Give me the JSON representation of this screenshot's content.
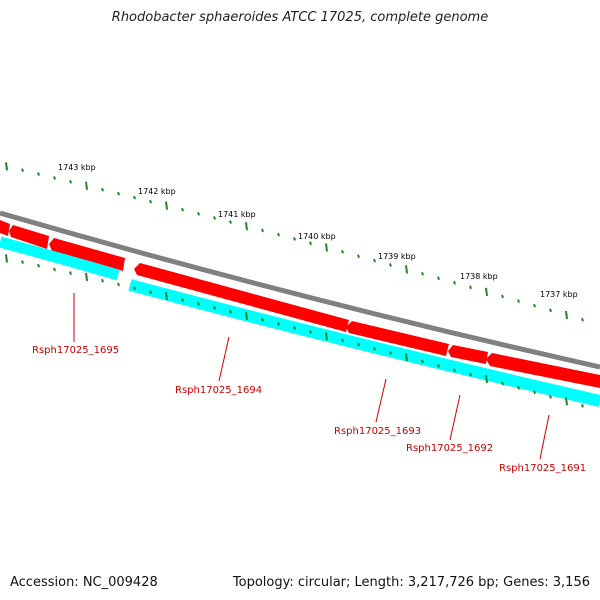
{
  "title": "Rhodobacter sphaeroides ATCC 17025, complete genome",
  "footer": {
    "accession": "Accession: NC_009428",
    "topology": "Topology: circular; Length: 3,217,726 bp; Genes: 3,156"
  },
  "colors": {
    "backbone": "#808080",
    "forward_gene": "#ff0000",
    "reverse_gene": "#00ffff",
    "tick": "#1a8a1a",
    "gene_label": "#cc0000",
    "scale_label": "#000000"
  },
  "scale_labels": [
    "1743 kbp",
    "1742 kbp",
    "1741 kbp",
    "1740 kbp",
    "1739 kbp",
    "1738 kbp",
    "1737 kbp"
  ],
  "genes": [
    {
      "label": "Rsph17025_1695"
    },
    {
      "label": "Rsph17025_1694"
    },
    {
      "label": "Rsph17025_1693"
    },
    {
      "label": "Rsph17025_1692"
    },
    {
      "label": "Rsph17025_1691"
    }
  ]
}
